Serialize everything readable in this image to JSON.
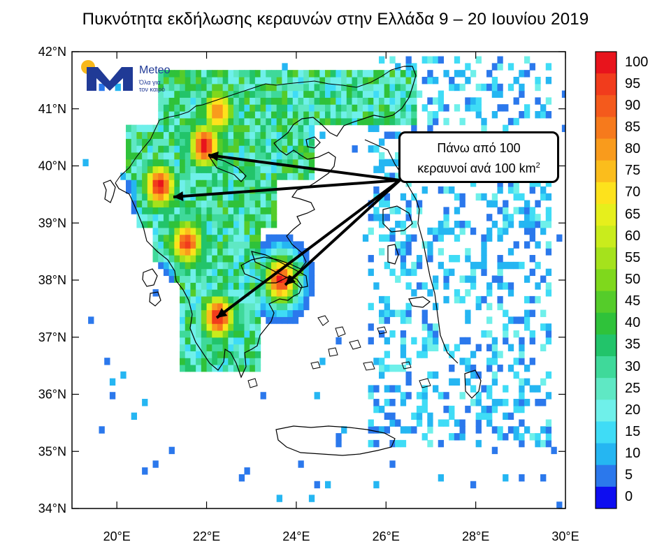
{
  "title": "Πυκνότητα εκδήλωσης κεραυνών στην Ελλάδα 9 – 20 Ιουνίου 2019",
  "logo": {
    "name": "Meteo",
    "tagline_1": "Όλα για",
    "tagline_2": "τον καιρό"
  },
  "callout": {
    "line1": "Πάνω από 100",
    "line2": "κεραυνοί ανά 100 km",
    "sup": "2"
  },
  "axes": {
    "y_labels": [
      "42°N",
      "41°N",
      "40°N",
      "39°N",
      "38°N",
      "37°N",
      "36°N",
      "35°N",
      "34°N"
    ],
    "x_labels": [
      "20°E",
      "22°E",
      "24°E",
      "26°E",
      "28°E",
      "30°E"
    ],
    "lat_range": [
      34,
      42
    ],
    "lon_range": [
      19,
      30
    ]
  },
  "colorbar": {
    "labels": [
      "100",
      "95",
      "90",
      "85",
      "80",
      "75",
      "70",
      "65",
      "60",
      "55",
      "50",
      "45",
      "40",
      "35",
      "30",
      "25",
      "20",
      "15",
      "10",
      "5",
      "0"
    ],
    "colors": [
      "#e8141c",
      "#f13c1c",
      "#f45a1c",
      "#f67a1c",
      "#f99b1c",
      "#fbbd1c",
      "#fde21c",
      "#e6ef1c",
      "#c9ec1c",
      "#a5e21c",
      "#7fd81c",
      "#55cc2a",
      "#2fc23a",
      "#22c46a",
      "#3fd99a",
      "#5fe8c4",
      "#6ff0ea",
      "#3fdcf6",
      "#25b6f2",
      "#2b78ec",
      "#0d0df0"
    ]
  },
  "chart_data": {
    "type": "heatmap",
    "title": "Πυκνότητα εκδήλωσης κεραυνών στην Ελλάδα 9 – 20 Ιουνίου 2019",
    "x_axis": "longitude (°E)",
    "y_axis": "latitude (°N)",
    "value_range": [
      0,
      100
    ],
    "hotspots": [
      {
        "lon": 21.9,
        "lat": 40.3,
        "value": 100
      },
      {
        "lon": 20.9,
        "lat": 39.6,
        "value": 100
      },
      {
        "lon": 21.5,
        "lat": 38.6,
        "value": 95
      },
      {
        "lon": 22.2,
        "lat": 37.3,
        "value": 100
      },
      {
        "lon": 23.6,
        "lat": 37.95,
        "value": 100
      },
      {
        "lon": 22.2,
        "lat": 40.9,
        "value": 85
      }
    ]
  }
}
